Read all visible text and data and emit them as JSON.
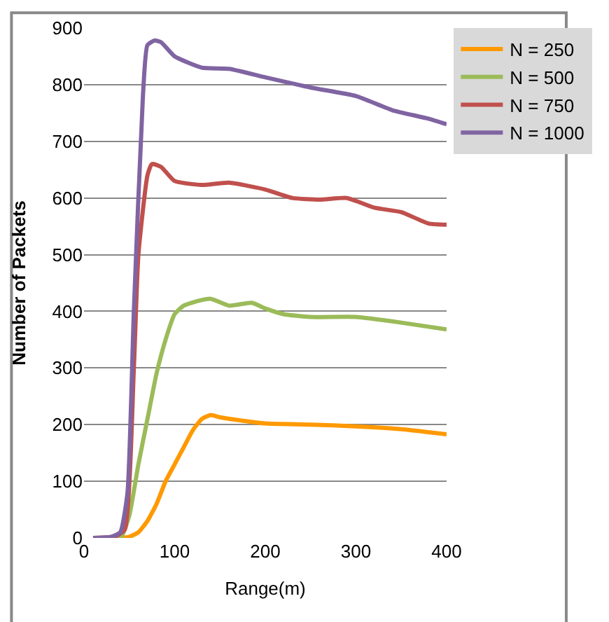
{
  "chart_data": {
    "type": "line",
    "xlabel": "Range(m)",
    "ylabel": "Number of Packets",
    "xlim": [
      0,
      400
    ],
    "xticks": [
      0,
      100,
      200,
      300,
      400
    ],
    "ylim": [
      0,
      900
    ],
    "yticks": [
      0,
      100,
      200,
      300,
      400,
      500,
      600,
      700,
      800,
      900
    ],
    "grid": "y",
    "legend": "top right",
    "marker": "none",
    "line_style": "solid",
    "series": [
      {
        "name": "N = 250",
        "color": "#ff9900",
        "x": [
          10,
          40,
          50,
          60,
          70,
          80,
          90,
          100,
          110,
          120,
          130,
          140,
          150,
          170,
          200,
          250,
          300,
          350,
          400
        ],
        "values": [
          0,
          0,
          2,
          10,
          30,
          60,
          100,
          130,
          160,
          190,
          210,
          217,
          213,
          208,
          202,
          200,
          197,
          192,
          183
        ]
      },
      {
        "name": "N = 500",
        "color": "#9bbb59",
        "x": [
          10,
          40,
          50,
          60,
          70,
          80,
          90,
          100,
          110,
          125,
          140,
          160,
          185,
          200,
          220,
          250,
          300,
          350,
          400
        ],
        "values": [
          0,
          0,
          40,
          130,
          210,
          290,
          350,
          395,
          410,
          418,
          422,
          410,
          415,
          405,
          395,
          390,
          390,
          380,
          368
        ]
      },
      {
        "name": "N = 750",
        "color": "#c0504d",
        "x": [
          10,
          35,
          45,
          55,
          60,
          70,
          75,
          85,
          100,
          130,
          160,
          200,
          230,
          260,
          290,
          320,
          350,
          380,
          400
        ],
        "values": [
          0,
          3,
          15,
          300,
          500,
          640,
          660,
          655,
          630,
          623,
          627,
          615,
          600,
          597,
          600,
          583,
          575,
          555,
          553
        ]
      },
      {
        "name": "N = 1000",
        "color": "#8064a2",
        "x": [
          10,
          30,
          40,
          48,
          55,
          65,
          70,
          78,
          85,
          100,
          130,
          160,
          200,
          250,
          300,
          340,
          380,
          400
        ],
        "values": [
          0,
          2,
          10,
          80,
          400,
          780,
          870,
          878,
          875,
          850,
          830,
          828,
          813,
          795,
          780,
          755,
          740,
          730
        ]
      }
    ]
  }
}
